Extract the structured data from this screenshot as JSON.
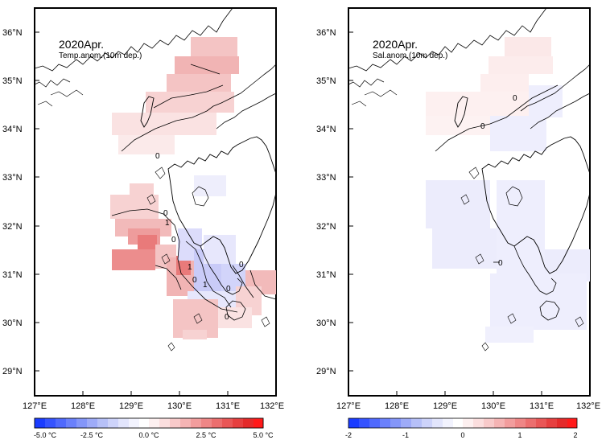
{
  "panels": [
    {
      "id": "temperature",
      "title": "2020Apr.",
      "subtitle": "Temp.anom.(10m dep.)",
      "lat_labels": [
        "36°N",
        "35°N",
        "34°N",
        "33°N",
        "32°N",
        "31°N",
        "30°N",
        "29°N"
      ],
      "lon_labels": [
        "127°E",
        "128°E",
        "129°E",
        "130°E",
        "131°E",
        "132°E"
      ],
      "contour_labels": [
        "0",
        "0",
        "1",
        "0",
        "1",
        "0",
        "1",
        "0",
        "0",
        "0"
      ],
      "colorbar": {
        "range": [
          -5,
          5
        ],
        "labels": [
          "-5.0 °C",
          "-2.5 °C",
          "0.0 °C",
          "2.5 °C",
          "5.0 °C"
        ]
      }
    },
    {
      "id": "salinity",
      "title": "2020Apr.",
      "subtitle": "Sal.anom.(10m dep.)",
      "lat_labels": [
        "36°N",
        "35°N",
        "34°N",
        "33°N",
        "32°N",
        "31°N",
        "30°N",
        "29°N"
      ],
      "lon_labels": [
        "127°E",
        "128°E",
        "129°E",
        "130°E",
        "131°E",
        "132°E"
      ],
      "contour_labels": [
        "0",
        "0",
        "0"
      ],
      "colorbar": {
        "range": [
          -2,
          2
        ],
        "labels": [
          "-2",
          "-1",
          "0",
          "1",
          "2"
        ]
      }
    }
  ],
  "map_extent": {
    "lon": [
      127,
      132
    ],
    "lat": [
      28.5,
      36.5
    ]
  },
  "colors": {
    "negative_max": "#1a3cff",
    "neutral": "#ffffff",
    "positive_max": "#ff1a1a",
    "coast": "#000000"
  }
}
